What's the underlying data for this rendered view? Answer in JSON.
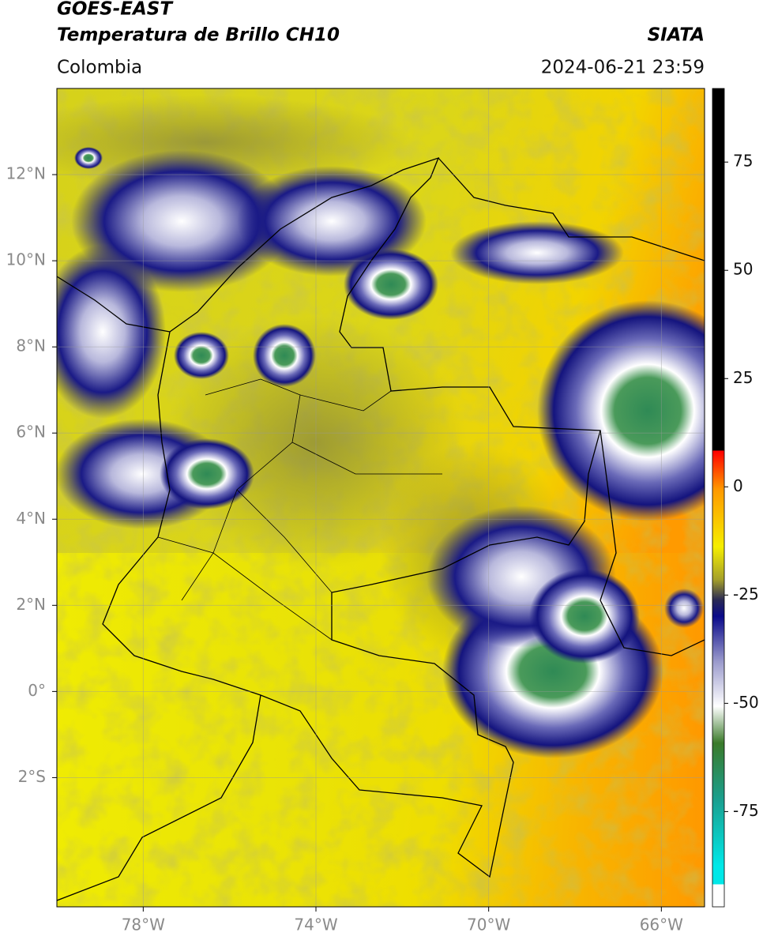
{
  "header": {
    "satellite": "GOES-EAST",
    "product": "Temperatura de Brillo CH10",
    "source": "SIATA",
    "region": "Colombia",
    "datetime": "2024-06-21 23:59"
  },
  "map": {
    "xlim": [
      -80,
      -65
    ],
    "ylim": [
      -5,
      14
    ],
    "xticks": [
      {
        "value": -78,
        "label": "78°W"
      },
      {
        "value": -74,
        "label": "74°W"
      },
      {
        "value": -70,
        "label": "70°W"
      },
      {
        "value": -66,
        "label": "66°W"
      }
    ],
    "yticks": [
      {
        "value": 12,
        "label": "12°N"
      },
      {
        "value": 10,
        "label": "10°N"
      },
      {
        "value": 8,
        "label": "8°N"
      },
      {
        "value": 6,
        "label": "6°N"
      },
      {
        "value": 4,
        "label": "4°N"
      },
      {
        "value": 2,
        "label": "2°N"
      },
      {
        "value": 0,
        "label": "0°"
      },
      {
        "value": -2,
        "label": "2°S"
      }
    ],
    "grid": true
  },
  "colorbar": {
    "lim": [
      -97,
      92
    ],
    "ticks": [
      75,
      50,
      25,
      0,
      -25,
      -50,
      -75
    ]
  }
}
